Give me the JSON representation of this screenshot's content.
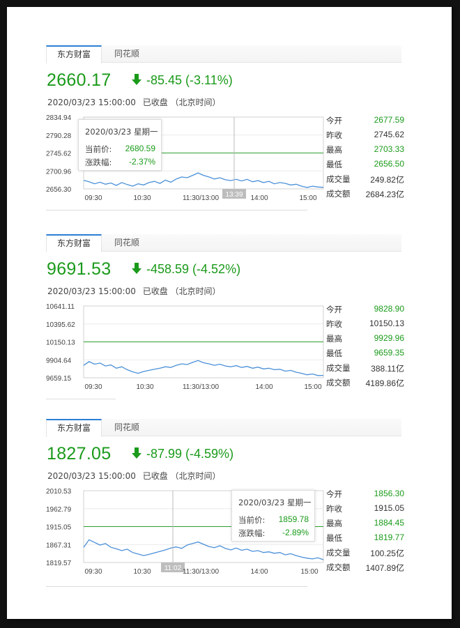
{
  "panels": [
    {
      "tabs": [
        "东方财富",
        "同花顺"
      ],
      "price": "2660.17",
      "change": "-85.45 (-3.11%)",
      "datetime": "2020/03/23 15:00:00",
      "status": "已收盘",
      "timezone": "（北京时间）",
      "y_ticks": [
        "2834.94",
        "2790.28",
        "2745.62",
        "2700.96",
        "2656.30"
      ],
      "x_ticks": [
        "09:30",
        "10:30",
        "11:30/13:00",
        "14:00",
        "15:00"
      ],
      "crosshair_label": "13:39",
      "tooltip": {
        "date": "2020/03/23 星期一",
        "price_label": "当前价:",
        "price": "2680.59",
        "change_label": "涨跌幅:",
        "change": "-2.37%"
      },
      "stats": [
        {
          "label": "今开",
          "value": "2677.59"
        },
        {
          "label": "昨收",
          "value": "2745.62"
        },
        {
          "label": "最高",
          "value": "2703.33"
        },
        {
          "label": "最低",
          "value": "2656.50"
        },
        {
          "label": "成交量",
          "value": "249.82亿"
        },
        {
          "label": "成交额",
          "value": "2684.23亿"
        }
      ]
    },
    {
      "tabs": [
        "东方财富",
        "同花顺"
      ],
      "price": "9691.53",
      "change": "-458.59 (-4.52%)",
      "datetime": "2020/03/23 15:00:00",
      "status": "已收盘",
      "timezone": "（北京时间）",
      "y_ticks": [
        "10641.11",
        "10395.62",
        "10150.13",
        "9904.64",
        "9659.15"
      ],
      "x_ticks": [
        "09:30",
        "10:30",
        "11:30/13:00",
        "14:00",
        "15:00"
      ],
      "stats": [
        {
          "label": "今开",
          "value": "9828.90"
        },
        {
          "label": "昨收",
          "value": "10150.13"
        },
        {
          "label": "最高",
          "value": "9929.96"
        },
        {
          "label": "最低",
          "value": "9659.35"
        },
        {
          "label": "成交量",
          "value": "388.11亿"
        },
        {
          "label": "成交额",
          "value": "4189.86亿"
        }
      ]
    },
    {
      "tabs": [
        "东方财富",
        "同花顺"
      ],
      "price": "1827.05",
      "change": "-87.99 (-4.59%)",
      "datetime": "2020/03/23 15:00:00",
      "status": "已收盘",
      "timezone": "（北京时间）",
      "y_ticks": [
        "2010.53",
        "1962.79",
        "1915.05",
        "1867.31",
        "1819.57"
      ],
      "x_ticks": [
        "09:30",
        "10:30",
        "11:30/13:00",
        "14:00",
        "15:00"
      ],
      "crosshair_label": "11:02",
      "tooltip": {
        "date": "2020/03/23 星期一",
        "price_label": "当前价:",
        "price": "1859.78",
        "change_label": "涨跌幅:",
        "change": "-2.89%"
      },
      "stats": [
        {
          "label": "今开",
          "value": "1856.30"
        },
        {
          "label": "昨收",
          "value": "1915.05"
        },
        {
          "label": "最高",
          "value": "1884.45"
        },
        {
          "label": "最低",
          "value": "1819.77"
        },
        {
          "label": "成交量",
          "value": "100.25亿"
        },
        {
          "label": "成交额",
          "value": "1407.89亿"
        }
      ]
    }
  ],
  "colors": {
    "down": "#1a9a1a",
    "line": "#4a90d9",
    "tab_accent": "#2a7fd4"
  },
  "chart_data": [
    {
      "type": "line",
      "ylim": [
        2656.3,
        2834.94
      ],
      "prev_close": 2745.62,
      "x_ticks": [
        "09:30",
        "10:30",
        "11:30/13:00",
        "14:00",
        "15:00"
      ],
      "series": [
        {
          "values": [
            2677.6,
            2674,
            2669,
            2673,
            2668,
            2671,
            2665,
            2672,
            2667,
            2663,
            2669,
            2666,
            2672,
            2675,
            2670,
            2678,
            2673,
            2681,
            2686,
            2684,
            2690,
            2696,
            2690,
            2686,
            2681,
            2684,
            2679,
            2677,
            2680,
            2676,
            2680,
            2674,
            2677,
            2672,
            2675,
            2669,
            2672,
            2670,
            2666,
            2668,
            2663,
            2660,
            2663,
            2661,
            2660.2
          ]
        }
      ]
    },
    {
      "type": "line",
      "ylim": [
        9659.15,
        10641.11
      ],
      "prev_close": 10150.13,
      "x_ticks": [
        "09:30",
        "10:30",
        "11:30/13:00",
        "14:00",
        "15:00"
      ],
      "series": [
        {
          "values": [
            9829,
            9880,
            9845,
            9860,
            9820,
            9835,
            9790,
            9810,
            9770,
            9740,
            9720,
            9745,
            9760,
            9775,
            9790,
            9810,
            9800,
            9830,
            9850,
            9840,
            9870,
            9895,
            9865,
            9850,
            9830,
            9845,
            9820,
            9810,
            9825,
            9800,
            9815,
            9790,
            9805,
            9780,
            9790,
            9770,
            9775,
            9750,
            9760,
            9735,
            9720,
            9700,
            9712,
            9690,
            9691.5
          ]
        }
      ]
    },
    {
      "type": "line",
      "ylim": [
        1819.57,
        2010.53
      ],
      "prev_close": 1915.05,
      "x_ticks": [
        "09:30",
        "10:30",
        "11:30/13:00",
        "14:00",
        "15:00"
      ],
      "series": [
        {
          "values": [
            1860,
            1880,
            1873,
            1866,
            1870,
            1860,
            1856,
            1851,
            1855,
            1846,
            1842,
            1838,
            1841,
            1845,
            1849,
            1853,
            1858,
            1861,
            1857,
            1866,
            1870,
            1874,
            1868,
            1862,
            1859,
            1864,
            1857,
            1853,
            1858,
            1852,
            1855,
            1849,
            1851,
            1846,
            1848,
            1844,
            1846,
            1840,
            1843,
            1838,
            1834,
            1831,
            1829,
            1832,
            1827
          ]
        }
      ]
    }
  ]
}
